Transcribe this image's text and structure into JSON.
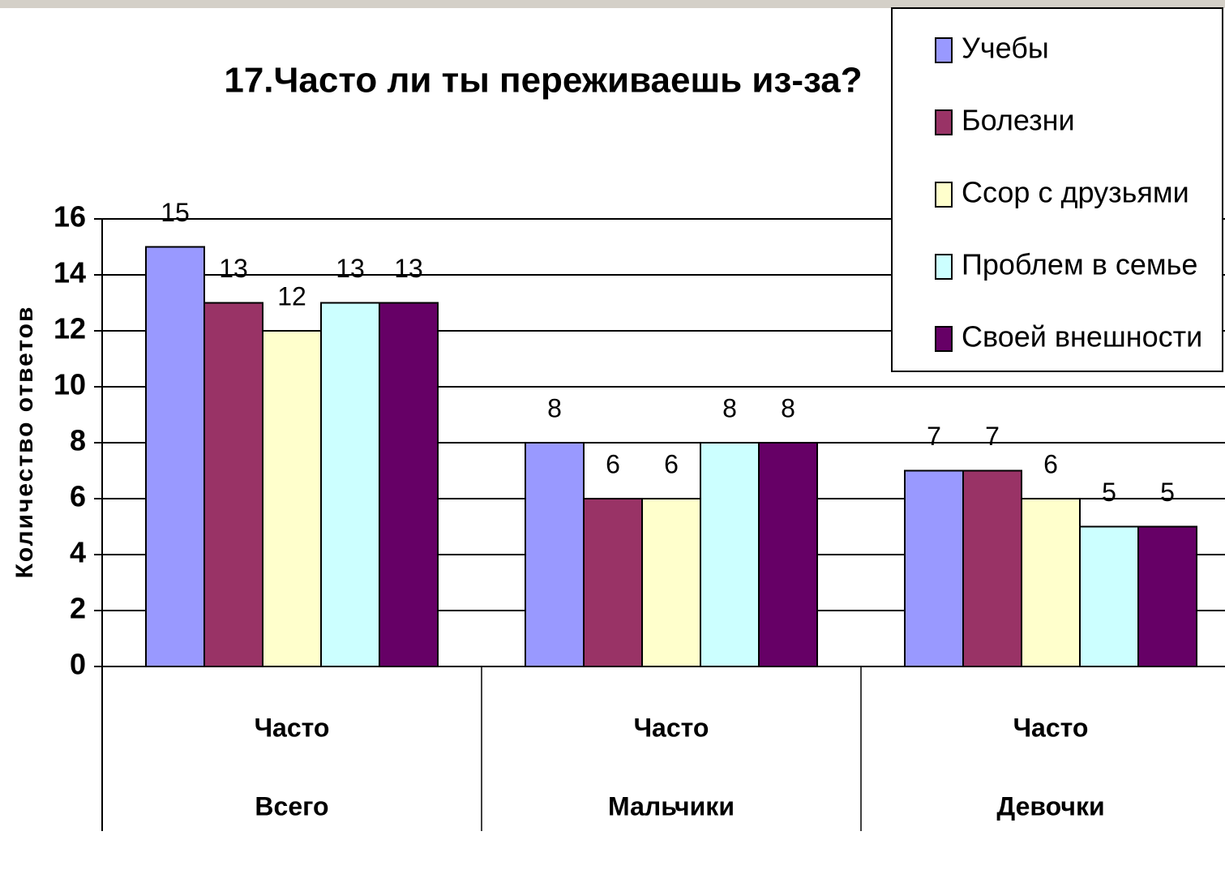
{
  "chart_data": {
    "type": "bar",
    "title": "17.Часто ли ты переживаешь из-за?",
    "y_label": "Количество ответов",
    "categories": [
      "Часто",
      "Часто",
      "Часто"
    ],
    "groups": [
      "Всего",
      "Мальчики",
      "Девочки"
    ],
    "series": [
      {
        "name": "Учебы",
        "color": "#9999ff",
        "values": [
          15,
          8,
          7
        ]
      },
      {
        "name": "Болезни",
        "color": "#993366",
        "values": [
          13,
          6,
          7
        ]
      },
      {
        "name": "Ссор с друзьями",
        "color": "#ffffcc",
        "values": [
          12,
          6,
          6
        ]
      },
      {
        "name": "Проблем в семье",
        "color": "#ccffff",
        "values": [
          13,
          8,
          5
        ]
      },
      {
        "name": "Своей внешности",
        "color": "#660066",
        "values": [
          13,
          8,
          5
        ]
      }
    ],
    "ylim": [
      0,
      16
    ],
    "yticks": [
      0,
      2,
      4,
      6,
      8,
      10,
      12,
      14,
      16
    ],
    "grid": true,
    "legend": "top-right"
  }
}
